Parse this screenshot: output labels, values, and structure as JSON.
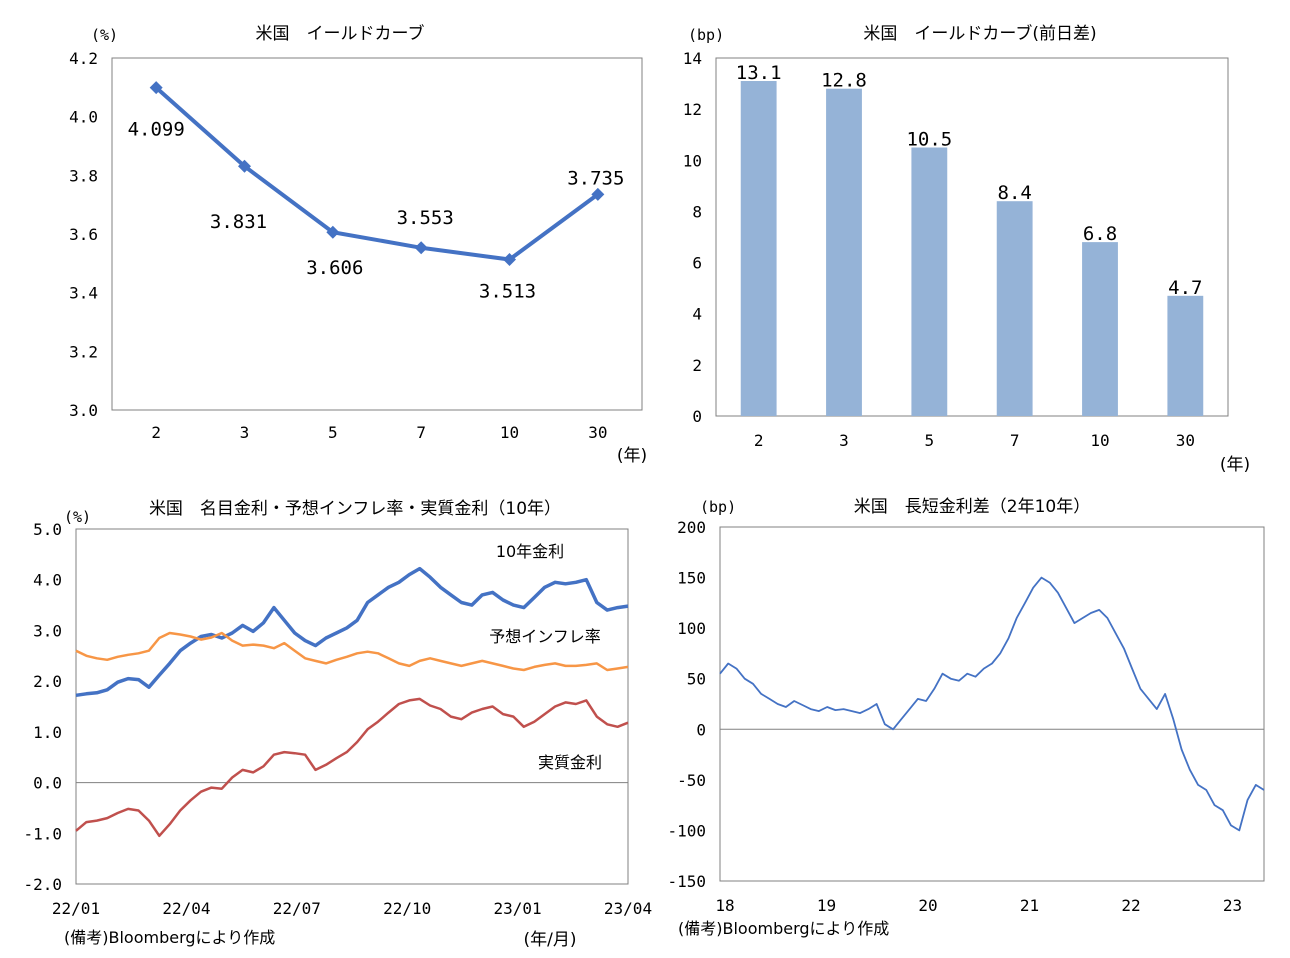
{
  "chart_data": [
    {
      "type": "line",
      "title": "米国　イールドカーブ",
      "ylabel": "(%)",
      "xlabel_unit": "(年)",
      "categories": [
        "2",
        "3",
        "5",
        "7",
        "10",
        "30"
      ],
      "values": [
        4.099,
        3.831,
        3.606,
        3.553,
        3.513,
        3.735
      ],
      "data_labels": [
        "4.099",
        "3.831",
        "3.606",
        "3.553",
        "3.513",
        "3.735"
      ],
      "ylim": [
        3.0,
        4.2
      ],
      "yticks": [
        "4.2",
        "4.0",
        "3.8",
        "3.6",
        "3.4",
        "3.2",
        "3.0"
      ],
      "color": "#4472c4"
    },
    {
      "type": "bar",
      "title": "米国　イールドカーブ(前日差)",
      "ylabel": "(bp)",
      "xlabel_unit": "(年)",
      "categories": [
        "2",
        "3",
        "5",
        "7",
        "10",
        "30"
      ],
      "values": [
        13.1,
        12.8,
        10.5,
        8.4,
        6.8,
        4.7
      ],
      "data_labels": [
        "13.1",
        "12.8",
        "10.5",
        "8.4",
        "6.8",
        "4.7"
      ],
      "ylim": [
        0,
        14
      ],
      "yticks": [
        "14",
        "12",
        "10",
        "8",
        "6",
        "4",
        "2",
        "0"
      ],
      "color": "#95b3d7"
    },
    {
      "type": "line",
      "title": "米国　名目金利・予想インフレ率・実質金利（10年）",
      "ylabel": "(%)",
      "xlabel_unit": "(年/月)",
      "x_ticks": [
        "22/01",
        "22/04",
        "22/07",
        "22/10",
        "23/01",
        "23/04"
      ],
      "yticks": [
        "5.0",
        "4.0",
        "3.0",
        "2.0",
        "1.0",
        "0.0",
        "-1.0",
        "-2.0"
      ],
      "ylim": [
        -2.0,
        5.0
      ],
      "series": [
        {
          "name": "10年金利",
          "color": "#4472c4",
          "values": [
            1.72,
            1.75,
            1.77,
            1.83,
            1.98,
            2.05,
            2.03,
            1.88,
            2.12,
            2.35,
            2.6,
            2.75,
            2.88,
            2.92,
            2.85,
            2.95,
            3.1,
            2.98,
            3.15,
            3.45,
            3.2,
            2.95,
            2.8,
            2.7,
            2.85,
            2.95,
            3.05,
            3.2,
            3.55,
            3.7,
            3.85,
            3.95,
            4.1,
            4.22,
            4.05,
            3.85,
            3.7,
            3.55,
            3.5,
            3.7,
            3.75,
            3.6,
            3.5,
            3.45,
            3.65,
            3.85,
            3.95,
            3.92,
            3.95,
            4.0,
            3.55,
            3.4,
            3.45,
            3.48
          ]
        },
        {
          "name": "予想インフレ率",
          "color": "#f79646",
          "values": [
            2.6,
            2.5,
            2.45,
            2.42,
            2.48,
            2.52,
            2.55,
            2.6,
            2.85,
            2.95,
            2.92,
            2.88,
            2.82,
            2.86,
            2.95,
            2.8,
            2.7,
            2.72,
            2.7,
            2.65,
            2.75,
            2.6,
            2.45,
            2.4,
            2.35,
            2.42,
            2.48,
            2.55,
            2.58,
            2.55,
            2.45,
            2.35,
            2.3,
            2.4,
            2.45,
            2.4,
            2.35,
            2.3,
            2.35,
            2.4,
            2.35,
            2.3,
            2.25,
            2.22,
            2.28,
            2.32,
            2.35,
            2.3,
            2.3,
            2.32,
            2.35,
            2.22,
            2.25,
            2.28
          ]
        },
        {
          "name": "実質金利",
          "color": "#c0504d",
          "values": [
            -0.95,
            -0.78,
            -0.75,
            -0.7,
            -0.6,
            -0.52,
            -0.55,
            -0.75,
            -1.05,
            -0.82,
            -0.55,
            -0.35,
            -0.18,
            -0.1,
            -0.12,
            0.1,
            0.25,
            0.2,
            0.32,
            0.55,
            0.6,
            0.58,
            0.55,
            0.25,
            0.35,
            0.48,
            0.6,
            0.8,
            1.05,
            1.2,
            1.38,
            1.55,
            1.62,
            1.65,
            1.52,
            1.45,
            1.3,
            1.25,
            1.38,
            1.45,
            1.5,
            1.35,
            1.3,
            1.1,
            1.2,
            1.35,
            1.5,
            1.58,
            1.55,
            1.62,
            1.3,
            1.15,
            1.1,
            1.18
          ]
        }
      ]
    },
    {
      "type": "line",
      "title": "米国　長短金利差（2年10年）",
      "ylabel": "(bp)",
      "x_ticks": [
        "18",
        "19",
        "20",
        "21",
        "22",
        "23"
      ],
      "yticks": [
        "200",
        "150",
        "100",
        "50",
        "0",
        "-50",
        "-100",
        "-150"
      ],
      "ylim": [
        -150,
        200
      ],
      "series": [
        {
          "name": "長短金利差",
          "color": "#4472c4",
          "values": [
            55,
            65,
            60,
            50,
            45,
            35,
            30,
            25,
            22,
            28,
            24,
            20,
            18,
            22,
            19,
            20,
            18,
            16,
            20,
            25,
            5,
            0,
            10,
            20,
            30,
            28,
            40,
            55,
            50,
            48,
            55,
            52,
            60,
            65,
            75,
            90,
            110,
            125,
            140,
            150,
            145,
            135,
            120,
            105,
            110,
            115,
            118,
            110,
            95,
            80,
            60,
            40,
            30,
            20,
            35,
            10,
            -20,
            -40,
            -55,
            -60,
            -75,
            -80,
            -95,
            -100,
            -70,
            -55,
            -60
          ]
        }
      ]
    }
  ],
  "notes": {
    "source_left": "(備考)Bloombergにより作成",
    "source_right": "(備考)Bloombergにより作成"
  }
}
